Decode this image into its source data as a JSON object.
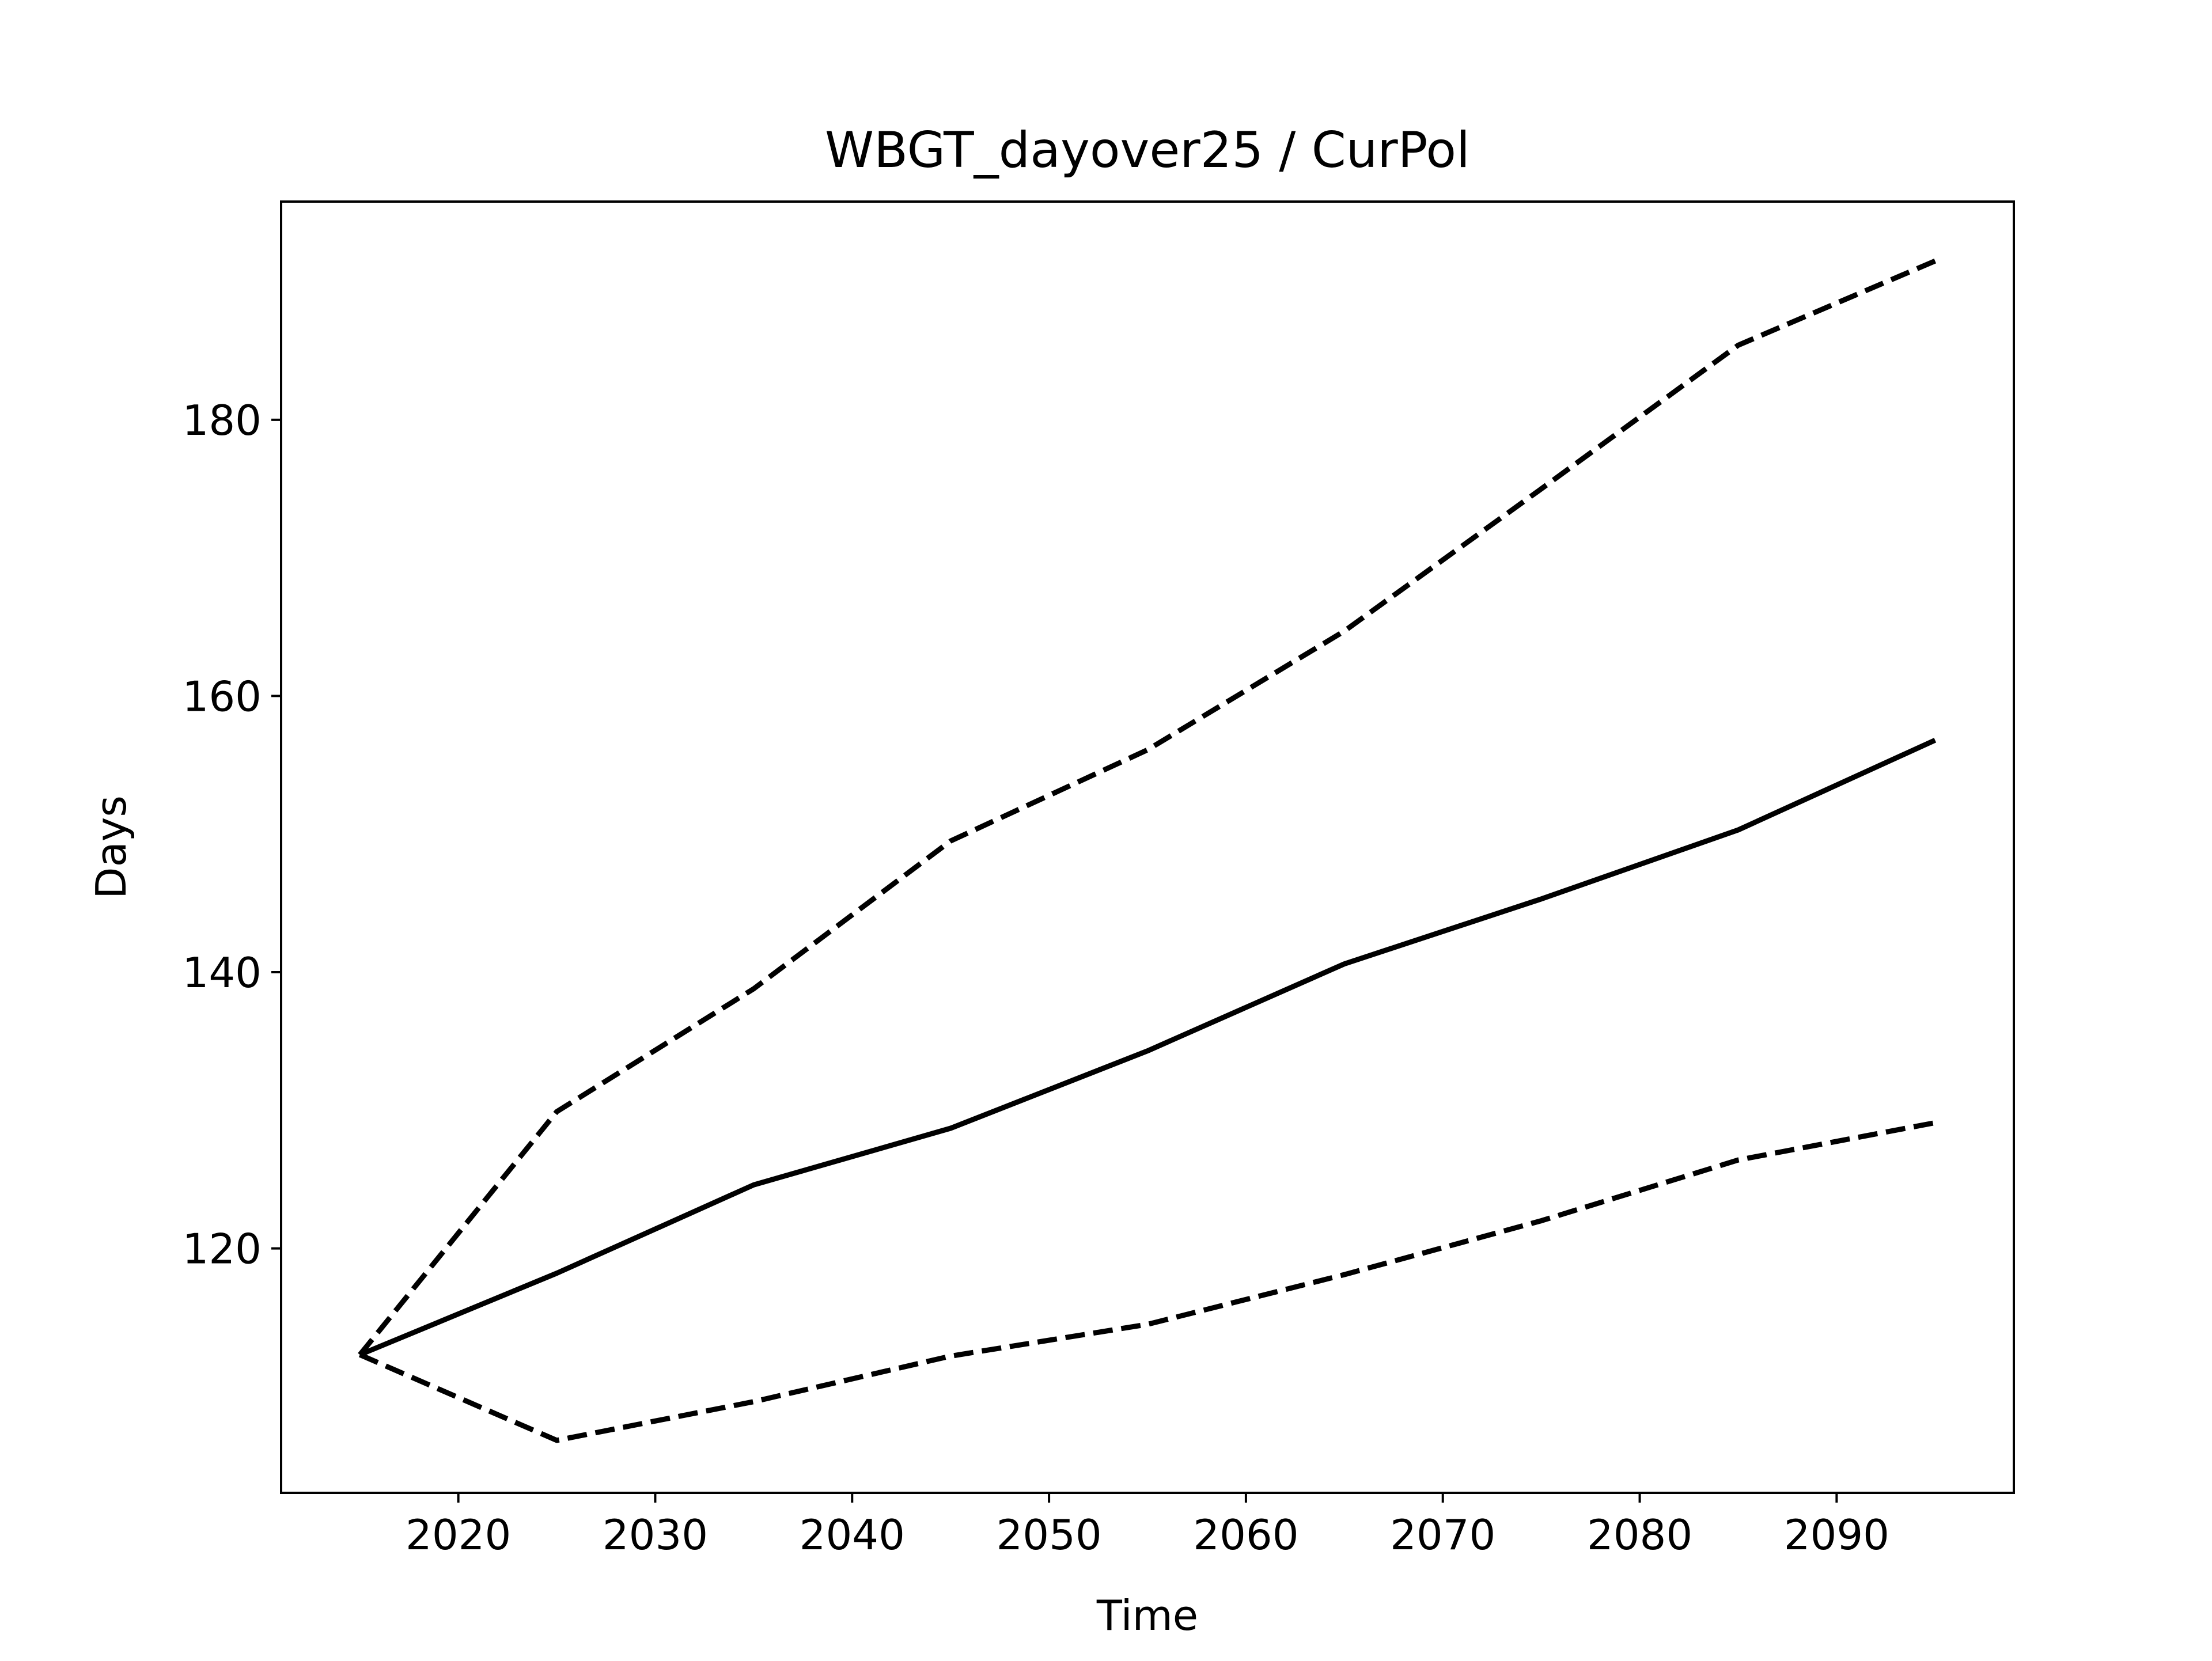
{
  "chart_data": {
    "type": "line",
    "title": "WBGT_dayover25 / CurPol",
    "xlabel": "Time",
    "ylabel": "Days",
    "xlim": [
      2011,
      2099
    ],
    "ylim": [
      102.3,
      195.8
    ],
    "xticks": [
      2020,
      2030,
      2040,
      2050,
      2060,
      2070,
      2080,
      2090
    ],
    "yticks": [
      120,
      140,
      160,
      180
    ],
    "x": [
      2015,
      2025,
      2035,
      2045,
      2055,
      2065,
      2075,
      2085,
      2095
    ],
    "grid": false,
    "legend": "none",
    "series": [
      {
        "style": "solid",
        "color": "#000000",
        "values": [
          112.3,
          118.2,
          124.6,
          128.7,
          134.3,
          140.6,
          145.3,
          150.3,
          156.8
        ]
      },
      {
        "style": "dashed",
        "color": "#000000",
        "values": [
          112.3,
          129.9,
          138.8,
          149.5,
          156.1,
          164.7,
          175.0,
          185.4,
          191.5
        ]
      },
      {
        "style": "dashed",
        "color": "#000000",
        "values": [
          112.3,
          106.1,
          108.9,
          112.2,
          114.5,
          118.1,
          122.0,
          126.4,
          129.1
        ]
      }
    ]
  }
}
